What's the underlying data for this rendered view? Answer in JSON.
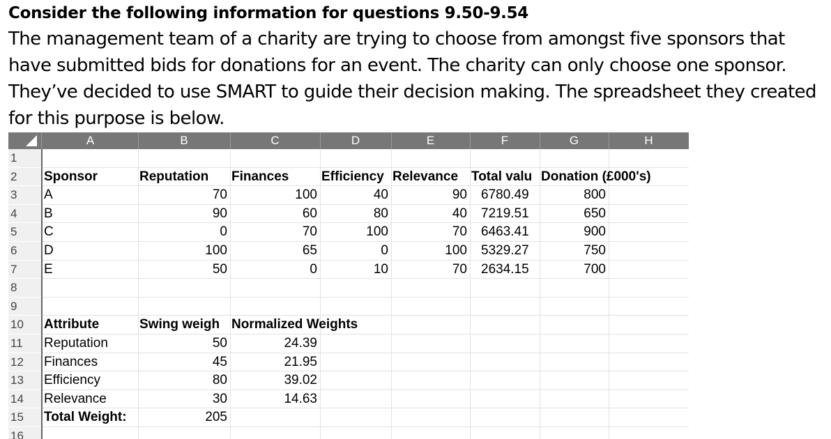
{
  "intro": {
    "heading": "Consider the following information for questions 9.50-9.54",
    "paragraph": "The management team of a charity are trying to choose from amongst five sponsors that have submitted bids for donations for an event. The charity can only choose one sponsor. They’ve decided to use SMART to guide their decision making. The spreadsheet they created for this purpose is below."
  },
  "sheet": {
    "columns": [
      "A",
      "B",
      "C",
      "D",
      "E",
      "F",
      "G",
      "H"
    ],
    "row_numbers": [
      "1",
      "2",
      "3",
      "4",
      "5",
      "6",
      "7",
      "8",
      "9",
      "10",
      "11",
      "12",
      "13",
      "14",
      "15",
      "16"
    ],
    "sponsor_header": [
      "Sponsor",
      "Reputation",
      "Finances",
      "Efficiency",
      "Relevance",
      "Total valu",
      "Donation (£000's)"
    ],
    "sponsors": [
      [
        "A",
        "70",
        "100",
        "40",
        "90",
        "6780.49",
        "800"
      ],
      [
        "B",
        "90",
        "60",
        "80",
        "40",
        "7219.51",
        "650"
      ],
      [
        "C",
        "0",
        "70",
        "100",
        "70",
        "6463.41",
        "900"
      ],
      [
        "D",
        "100",
        "65",
        "0",
        "100",
        "5329.27",
        "750"
      ],
      [
        "E",
        "50",
        "0",
        "10",
        "70",
        "2634.15",
        "700"
      ]
    ],
    "weights_header": [
      "Attribute",
      "Swing weigh",
      "Normalized Weights"
    ],
    "weights": [
      [
        "Reputation",
        "50",
        "24.39"
      ],
      [
        "Finances",
        "45",
        "21.95"
      ],
      [
        "Efficiency",
        "80",
        "39.02"
      ],
      [
        "Relevance",
        "30",
        "14.63"
      ]
    ],
    "total": [
      "Total Weight:",
      "205"
    ]
  }
}
